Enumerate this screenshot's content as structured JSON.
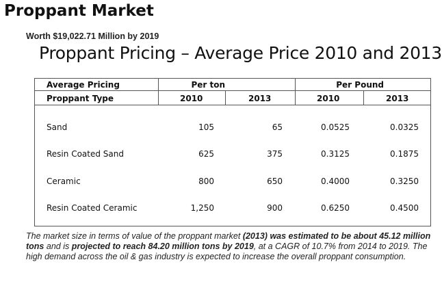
{
  "title": "Proppant Market",
  "worth": "Worth $19,022.71 Million by 2019",
  "subtitle": "Proppant Pricing – Average Price 2010 and 2013",
  "table": {
    "header_left_top": "Average Pricing",
    "header_left_bottom": "Proppant Type",
    "group_per_ton": "Per ton",
    "group_per_pound": "Per Pound",
    "years": [
      "2010",
      "2013",
      "2010",
      "2013"
    ],
    "rows": [
      {
        "type": "Sand",
        "ton_2010": "105",
        "ton_2013": "65",
        "lb_2010": "0.0525",
        "lb_2013": "0.0325"
      },
      {
        "type": "Resin Coated Sand",
        "ton_2010": "625",
        "ton_2013": "375",
        "lb_2010": "0.3125",
        "lb_2013": "0.1875"
      },
      {
        "type": "Ceramic",
        "ton_2010": "800",
        "ton_2013": "650",
        "lb_2010": "0.4000",
        "lb_2013": "0.3250"
      },
      {
        "type": "Resin Coated Ceramic",
        "ton_2010": "1,250",
        "ton_2013": "900",
        "lb_2010": "0.6250",
        "lb_2013": "0.4500"
      }
    ]
  },
  "footnote": {
    "p1": "The market size in terms of value of the proppant market ",
    "b1": "(2013)",
    "p2": " ",
    "b2": "was estimated to be about 45.12 million tons",
    "p3": " and is ",
    "b3": "projected to reach 84.20 million tons by 2019",
    "p4": ", at a CAGR of 10.7% from 2014 to 2019. The high demand across the oil & gas industry is expected to increase the overall proppant consumption."
  }
}
